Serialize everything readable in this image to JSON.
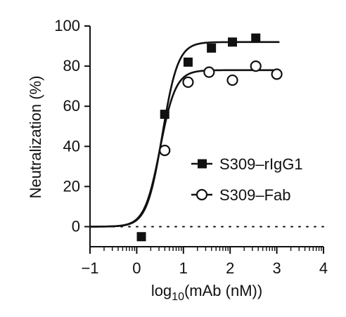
{
  "chart_data": {
    "type": "scatter",
    "title": "",
    "xlabel": {
      "base": "log",
      "subscript": "10",
      "rest": "(mAb (nM))"
    },
    "ylabel": "Neutralization (%)",
    "xlim": [
      -1,
      4
    ],
    "ylim": [
      -10,
      100
    ],
    "xticks": [
      -1,
      0,
      1,
      2,
      3,
      4
    ],
    "xtick_labels": [
      "−1",
      "0",
      "1",
      "2",
      "3",
      "4"
    ],
    "yticks": [
      0,
      20,
      40,
      60,
      80,
      100
    ],
    "ytick_labels": [
      "0",
      "20",
      "40",
      "60",
      "80",
      "100"
    ],
    "grid": false,
    "legend_position": "right",
    "zero_reference_line": "dotted",
    "series": [
      {
        "name": "S309–rIgG1",
        "marker": "filled-square",
        "color": "#111111",
        "x": [
          0.1,
          0.6,
          1.1,
          1.6,
          2.05,
          2.55
        ],
        "y": [
          -5,
          56,
          82,
          89,
          92,
          94
        ],
        "fit": {
          "bottom": 0,
          "top": 92,
          "ec50": 0.55,
          "hill": 2.6
        }
      },
      {
        "name": "S309–Fab",
        "marker": "open-circle",
        "color": "#111111",
        "x": [
          0.6,
          1.1,
          1.55,
          2.05,
          2.55,
          3.0
        ],
        "y": [
          38,
          72,
          77,
          73,
          80,
          76
        ],
        "fit": {
          "bottom": 0,
          "top": 78,
          "ec50": 0.5,
          "hill": 2.6
        }
      }
    ]
  }
}
